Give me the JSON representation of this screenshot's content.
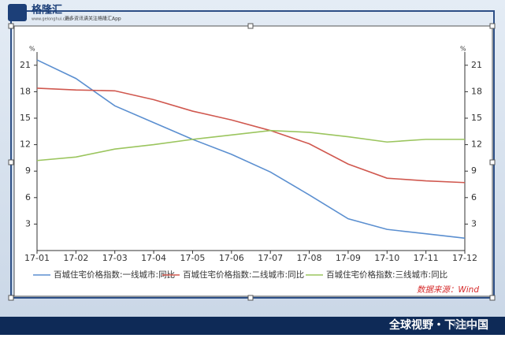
{
  "header": {
    "logo": "格隆汇",
    "site": "www.gelonghui.com",
    "tagline": "更多资讯请关注格隆汇App"
  },
  "footer": {
    "slogan": "全球视野・下注中国",
    "watermark": "格隆汇"
  },
  "chart_data": {
    "type": "line",
    "ylabel": "%",
    "y2label": "%",
    "source": "数据来源：Wind",
    "categories": [
      "17-01",
      "17-02",
      "17-03",
      "17-04",
      "17-05",
      "17-06",
      "17-07",
      "17-08",
      "17-09",
      "17-10",
      "17-11",
      "17-12"
    ],
    "series": [
      {
        "name": "百城住宅价格指数:一线城市:同比",
        "color": "#5b8fd0",
        "values": [
          21.6,
          19.5,
          16.4,
          14.5,
          12.6,
          10.9,
          8.9,
          6.3,
          3.6,
          2.4,
          1.9,
          1.4
        ]
      },
      {
        "name": "百城住宅价格指数:二线城市:同比",
        "color": "#d0584f",
        "values": [
          18.4,
          18.2,
          18.1,
          17.1,
          15.8,
          14.8,
          13.6,
          12.1,
          9.8,
          8.2,
          7.9,
          7.7
        ]
      },
      {
        "name": "百城住宅价格指数:三线城市:同比",
        "color": "#9bc55e",
        "values": [
          10.2,
          10.6,
          11.5,
          12.0,
          12.6,
          13.1,
          13.6,
          13.4,
          12.9,
          12.3,
          12.6,
          12.6
        ]
      }
    ],
    "ylim": [
      0,
      22.5
    ],
    "yticks": [
      3,
      6,
      9,
      12,
      15,
      18,
      21
    ],
    "y2lim": [
      0,
      22.5
    ],
    "y2ticks": [
      3,
      6,
      9,
      12,
      15,
      18,
      21
    ],
    "legend": "bottom"
  }
}
